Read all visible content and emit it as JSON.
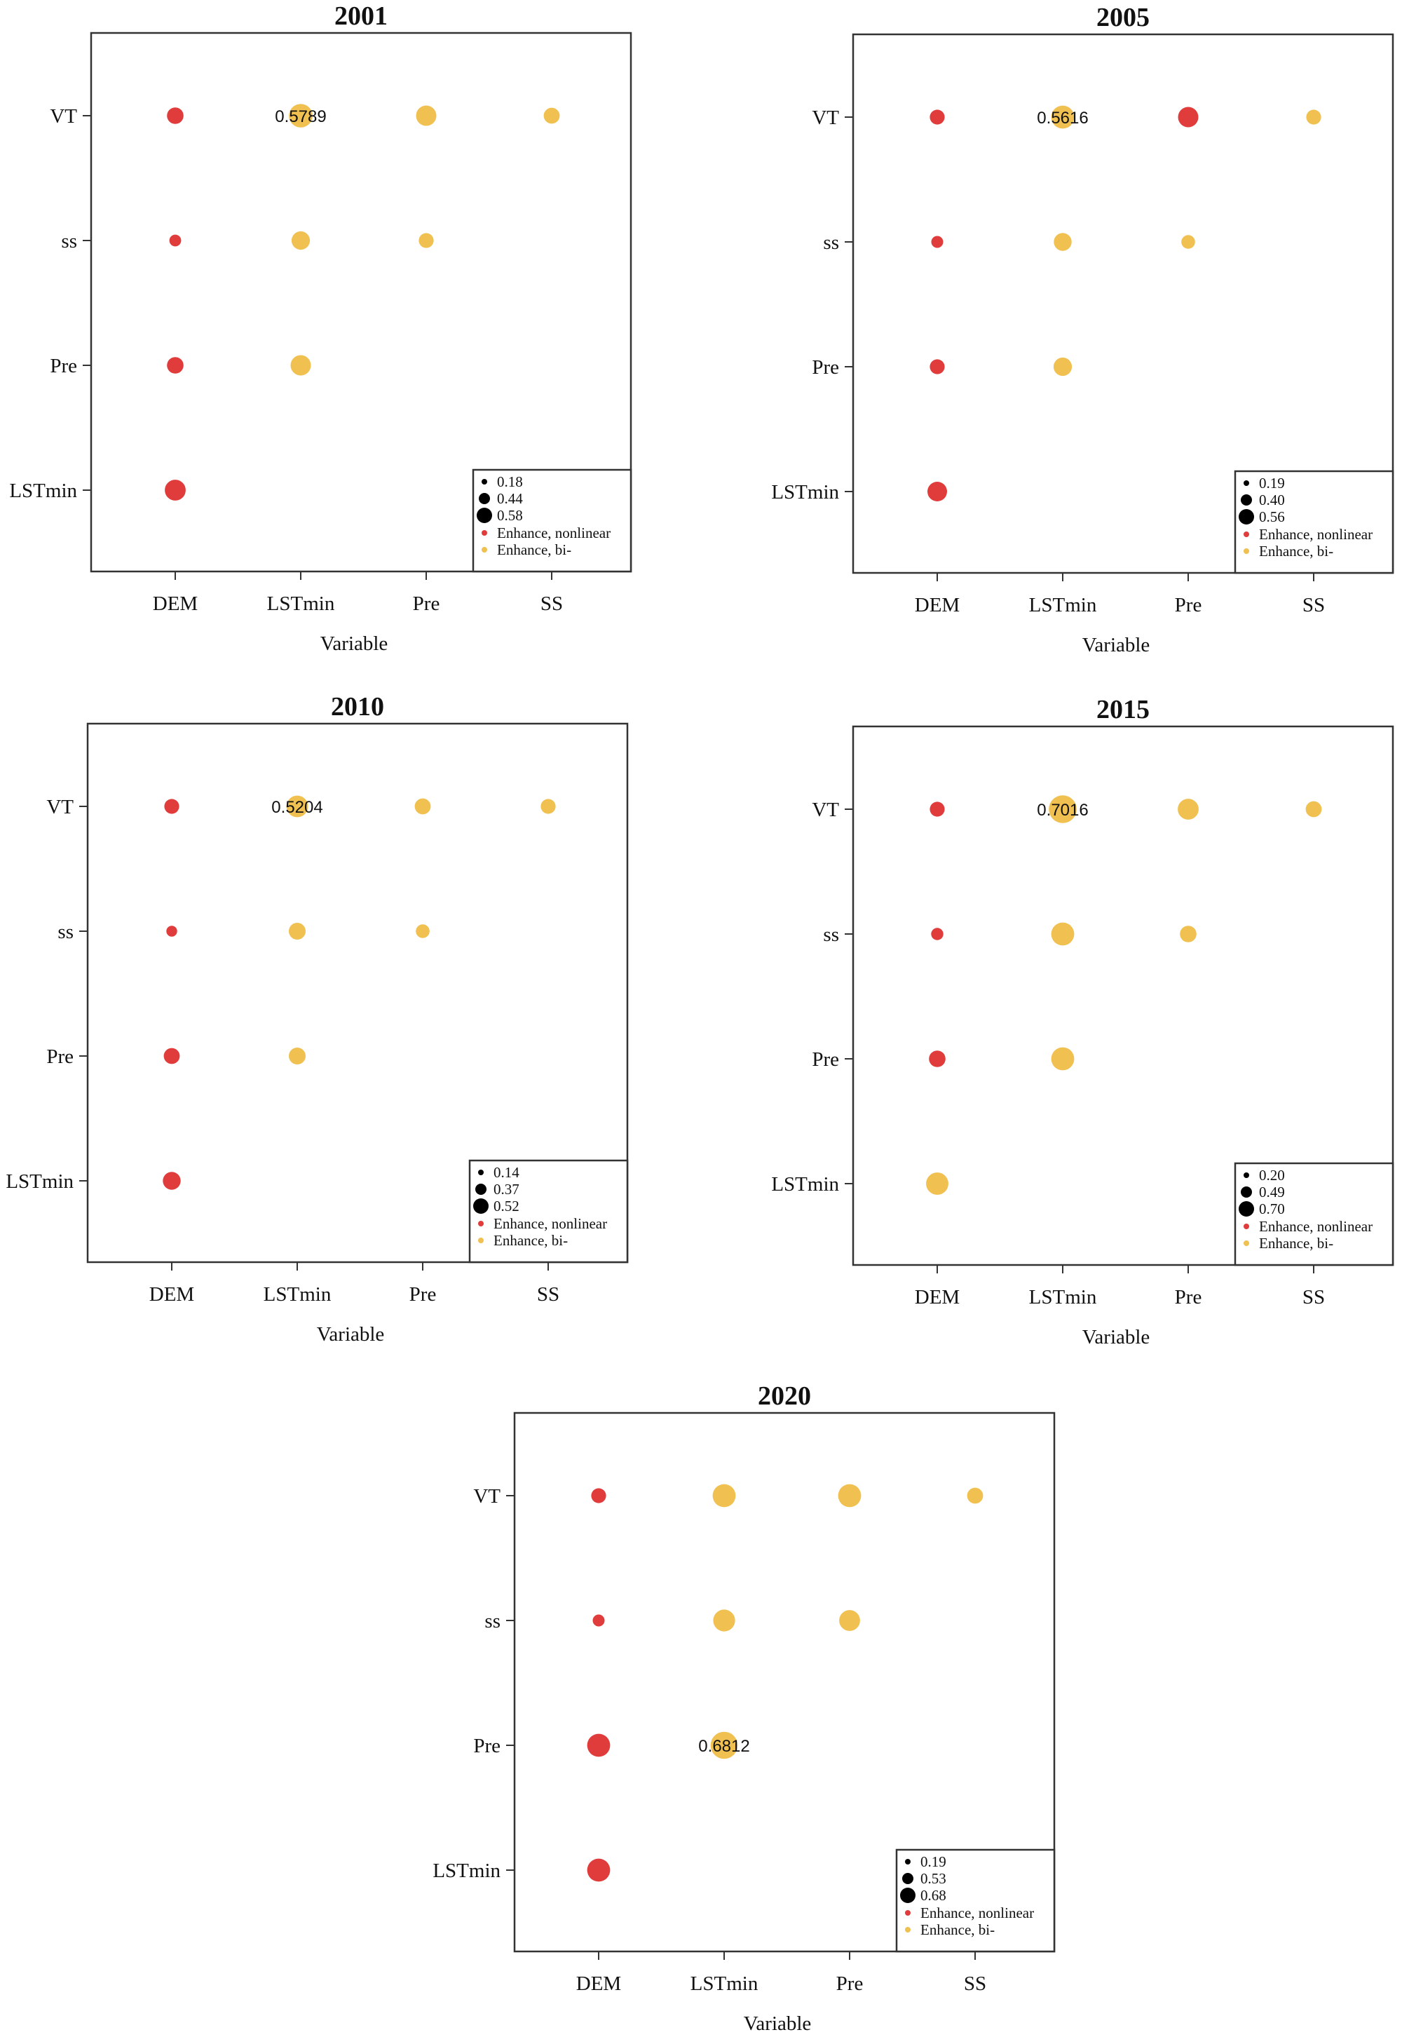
{
  "colors": {
    "nonlinear": "#e03c3c",
    "bivariate": "#f0c050",
    "frame": "#333333"
  },
  "chart_data": [
    {
      "type": "scatter",
      "title": "2001",
      "xlabel": "Variable",
      "x_categories": [
        "DEM",
        "LSTmin",
        "Pre",
        "SS"
      ],
      "y_categories": [
        "LSTmin",
        "Pre",
        "ss",
        "VT"
      ],
      "annotation": {
        "text": "0.5789",
        "x": "LSTmin",
        "y": "VT"
      },
      "legend": {
        "position": "bottom-right",
        "sizes": [
          "0.18",
          "0.44",
          "0.58"
        ],
        "types": [
          "Enhance, nonlinear",
          "Enhance, bi-"
        ]
      },
      "points": [
        {
          "x": "DEM",
          "y": "VT",
          "value": 0.36,
          "type": "nonlinear"
        },
        {
          "x": "LSTmin",
          "y": "VT",
          "value": 0.58,
          "type": "bi"
        },
        {
          "x": "Pre",
          "y": "VT",
          "value": 0.48,
          "type": "bi"
        },
        {
          "x": "SS",
          "y": "VT",
          "value": 0.34,
          "type": "bi"
        },
        {
          "x": "DEM",
          "y": "ss",
          "value": 0.18,
          "type": "nonlinear"
        },
        {
          "x": "LSTmin",
          "y": "ss",
          "value": 0.42,
          "type": "bi"
        },
        {
          "x": "Pre",
          "y": "ss",
          "value": 0.3,
          "type": "bi"
        },
        {
          "x": "DEM",
          "y": "Pre",
          "value": 0.36,
          "type": "nonlinear"
        },
        {
          "x": "LSTmin",
          "y": "Pre",
          "value": 0.48,
          "type": "bi"
        },
        {
          "x": "DEM",
          "y": "LSTmin",
          "value": 0.5,
          "type": "nonlinear"
        }
      ]
    },
    {
      "type": "scatter",
      "title": "2005",
      "xlabel": "Variable",
      "x_categories": [
        "DEM",
        "LSTmin",
        "Pre",
        "SS"
      ],
      "y_categories": [
        "LSTmin",
        "Pre",
        "ss",
        "VT"
      ],
      "annotation": {
        "text": "0.5616",
        "x": "LSTmin",
        "y": "VT"
      },
      "legend": {
        "position": "bottom-right",
        "sizes": [
          "0.19",
          "0.40",
          "0.56"
        ],
        "types": [
          "Enhance, nonlinear",
          "Enhance, bi-"
        ]
      },
      "points": [
        {
          "x": "DEM",
          "y": "VT",
          "value": 0.3,
          "type": "nonlinear"
        },
        {
          "x": "LSTmin",
          "y": "VT",
          "value": 0.56,
          "type": "bi"
        },
        {
          "x": "Pre",
          "y": "VT",
          "value": 0.48,
          "type": "nonlinear"
        },
        {
          "x": "SS",
          "y": "VT",
          "value": 0.3,
          "type": "bi"
        },
        {
          "x": "DEM",
          "y": "ss",
          "value": 0.19,
          "type": "nonlinear"
        },
        {
          "x": "LSTmin",
          "y": "ss",
          "value": 0.4,
          "type": "bi"
        },
        {
          "x": "Pre",
          "y": "ss",
          "value": 0.26,
          "type": "bi"
        },
        {
          "x": "DEM",
          "y": "Pre",
          "value": 0.3,
          "type": "nonlinear"
        },
        {
          "x": "LSTmin",
          "y": "Pre",
          "value": 0.42,
          "type": "bi"
        },
        {
          "x": "DEM",
          "y": "LSTmin",
          "value": 0.46,
          "type": "nonlinear"
        }
      ]
    },
    {
      "type": "scatter",
      "title": "2010",
      "xlabel": "Variable",
      "x_categories": [
        "DEM",
        "LSTmin",
        "Pre",
        "SS"
      ],
      "y_categories": [
        "LSTmin",
        "Pre",
        "ss",
        "VT"
      ],
      "annotation": {
        "text": "0.5204",
        "x": "LSTmin",
        "y": "VT"
      },
      "legend": {
        "position": "bottom-right",
        "sizes": [
          "0.14",
          "0.37",
          "0.52"
        ],
        "types": [
          "Enhance, nonlinear",
          "Enhance, bi-"
        ]
      },
      "points": [
        {
          "x": "DEM",
          "y": "VT",
          "value": 0.3,
          "type": "nonlinear"
        },
        {
          "x": "LSTmin",
          "y": "VT",
          "value": 0.52,
          "type": "bi"
        },
        {
          "x": "Pre",
          "y": "VT",
          "value": 0.34,
          "type": "bi"
        },
        {
          "x": "SS",
          "y": "VT",
          "value": 0.3,
          "type": "bi"
        },
        {
          "x": "DEM",
          "y": "ss",
          "value": 0.14,
          "type": "nonlinear"
        },
        {
          "x": "LSTmin",
          "y": "ss",
          "value": 0.37,
          "type": "bi"
        },
        {
          "x": "Pre",
          "y": "ss",
          "value": 0.26,
          "type": "bi"
        },
        {
          "x": "DEM",
          "y": "Pre",
          "value": 0.34,
          "type": "nonlinear"
        },
        {
          "x": "LSTmin",
          "y": "Pre",
          "value": 0.37,
          "type": "bi"
        },
        {
          "x": "DEM",
          "y": "LSTmin",
          "value": 0.4,
          "type": "nonlinear"
        }
      ]
    },
    {
      "type": "scatter",
      "title": "2015",
      "xlabel": "Variable",
      "x_categories": [
        "DEM",
        "LSTmin",
        "Pre",
        "SS"
      ],
      "y_categories": [
        "LSTmin",
        "Pre",
        "ss",
        "VT"
      ],
      "annotation": {
        "text": "0.7016",
        "x": "LSTmin",
        "y": "VT"
      },
      "legend": {
        "position": "bottom-right",
        "sizes": [
          "0.20",
          "0.49",
          "0.70"
        ],
        "types": [
          "Enhance, nonlinear",
          "Enhance, bi-"
        ]
      },
      "points": [
        {
          "x": "DEM",
          "y": "VT",
          "value": 0.3,
          "type": "nonlinear"
        },
        {
          "x": "LSTmin",
          "y": "VT",
          "value": 0.7,
          "type": "bi"
        },
        {
          "x": "Pre",
          "y": "VT",
          "value": 0.5,
          "type": "bi"
        },
        {
          "x": "SS",
          "y": "VT",
          "value": 0.34,
          "type": "bi"
        },
        {
          "x": "DEM",
          "y": "ss",
          "value": 0.2,
          "type": "nonlinear"
        },
        {
          "x": "LSTmin",
          "y": "ss",
          "value": 0.56,
          "type": "bi"
        },
        {
          "x": "Pre",
          "y": "ss",
          "value": 0.36,
          "type": "bi"
        },
        {
          "x": "DEM",
          "y": "Pre",
          "value": 0.36,
          "type": "nonlinear"
        },
        {
          "x": "LSTmin",
          "y": "Pre",
          "value": 0.56,
          "type": "bi"
        },
        {
          "x": "DEM",
          "y": "LSTmin",
          "value": 0.54,
          "type": "bi"
        }
      ]
    },
    {
      "type": "scatter",
      "title": "2020",
      "xlabel": "Variable",
      "x_categories": [
        "DEM",
        "LSTmin",
        "Pre",
        "SS"
      ],
      "y_categories": [
        "LSTmin",
        "Pre",
        "ss",
        "VT"
      ],
      "annotation": {
        "text": "0.6812",
        "x": "LSTmin",
        "y": "Pre"
      },
      "legend": {
        "position": "bottom-right",
        "sizes": [
          "0.19",
          "0.53",
          "0.68"
        ],
        "types": [
          "Enhance, nonlinear",
          "Enhance, bi-"
        ]
      },
      "points": [
        {
          "x": "DEM",
          "y": "VT",
          "value": 0.3,
          "type": "nonlinear"
        },
        {
          "x": "LSTmin",
          "y": "VT",
          "value": 0.56,
          "type": "bi"
        },
        {
          "x": "Pre",
          "y": "VT",
          "value": 0.56,
          "type": "bi"
        },
        {
          "x": "SS",
          "y": "VT",
          "value": 0.34,
          "type": "bi"
        },
        {
          "x": "DEM",
          "y": "ss",
          "value": 0.19,
          "type": "nonlinear"
        },
        {
          "x": "LSTmin",
          "y": "ss",
          "value": 0.53,
          "type": "bi"
        },
        {
          "x": "Pre",
          "y": "ss",
          "value": 0.5,
          "type": "bi"
        },
        {
          "x": "DEM",
          "y": "Pre",
          "value": 0.56,
          "type": "nonlinear"
        },
        {
          "x": "LSTmin",
          "y": "Pre",
          "value": 0.68,
          "type": "bi"
        },
        {
          "x": "DEM",
          "y": "LSTmin",
          "value": 0.56,
          "type": "nonlinear"
        }
      ]
    }
  ]
}
